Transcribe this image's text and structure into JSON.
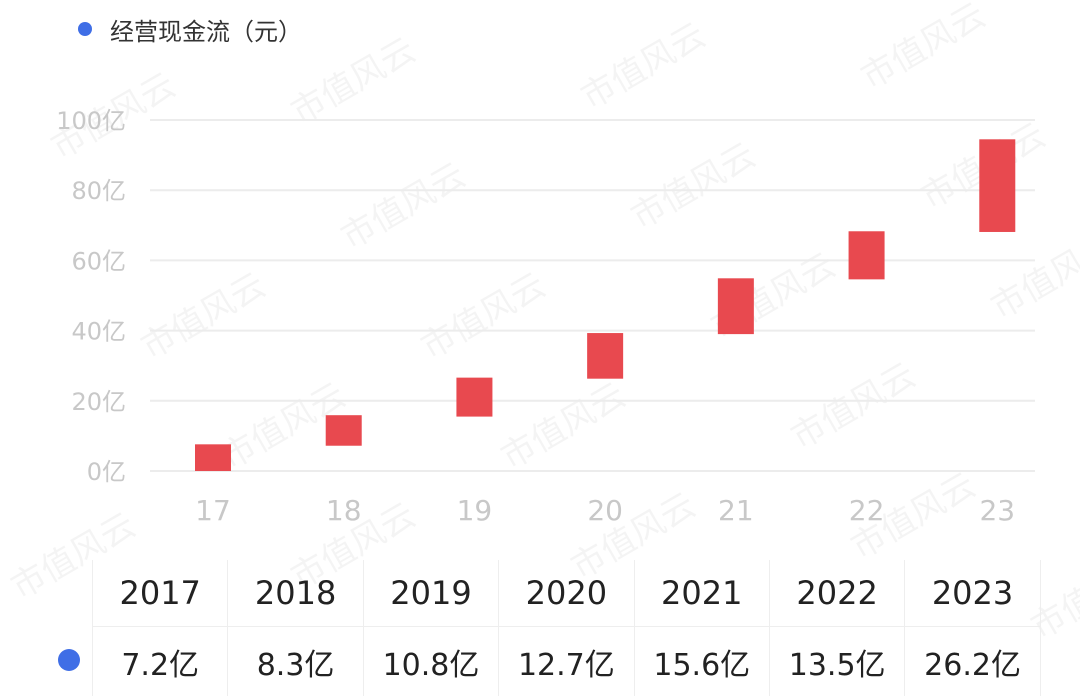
{
  "legend": {
    "label": "经营现金流（元）",
    "color": "#3f6ee6"
  },
  "watermark": {
    "text": "市值风云"
  },
  "colors": {
    "bar": "#e8494f",
    "grid": "#ececec",
    "axis_text": "#c8c8c8"
  },
  "chart_data": {
    "type": "bar",
    "subtype": "waterfall",
    "categories": [
      "17",
      "18",
      "19",
      "20",
      "21",
      "22",
      "23"
    ],
    "y_ticks": [
      "0亿",
      "20亿",
      "40亿",
      "60亿",
      "80亿",
      "100亿"
    ],
    "y_tick_values": [
      0,
      20,
      40,
      60,
      80,
      100
    ],
    "ylim": [
      0,
      100
    ],
    "grid": true,
    "bars": [
      {
        "low": 0,
        "high": 7.6
      },
      {
        "low": 7.2,
        "high": 15.9
      },
      {
        "low": 15.5,
        "high": 26.6
      },
      {
        "low": 26.3,
        "high": 39.3
      },
      {
        "low": 39.0,
        "high": 54.9
      },
      {
        "low": 54.6,
        "high": 68.3
      },
      {
        "low": 68.1,
        "high": 94.5
      }
    ]
  },
  "table": {
    "years": [
      "2017",
      "2018",
      "2019",
      "2020",
      "2021",
      "2022",
      "2023"
    ],
    "values": [
      "7.2亿",
      "8.3亿",
      "10.8亿",
      "12.7亿",
      "15.6亿",
      "13.5亿",
      "26.2亿"
    ]
  }
}
